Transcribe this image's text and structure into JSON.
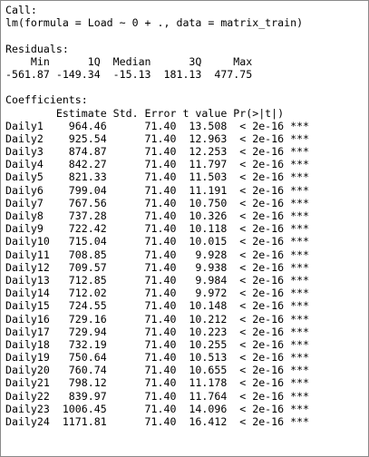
{
  "call": {
    "header": "Call:",
    "formula": "lm(formula = Load ~ 0 + ., data = matrix_train)"
  },
  "residuals": {
    "header": "Residuals:",
    "labels_line": "    Min      1Q  Median      3Q     Max ",
    "values_line": "-561.87 -149.34  -15.13  181.13  477.75 "
  },
  "coefficients": {
    "header": "Coefficients:",
    "columns_line": "        Estimate Std. Error t value Pr(>|t|)    ",
    "rows": [
      "Daily1    964.46      71.40  13.508  < 2e-16 ***",
      "Daily2    925.54      71.40  12.963  < 2e-16 ***",
      "Daily3    874.87      71.40  12.253  < 2e-16 ***",
      "Daily4    842.27      71.40  11.797  < 2e-16 ***",
      "Daily5    821.33      71.40  11.503  < 2e-16 ***",
      "Daily6    799.04      71.40  11.191  < 2e-16 ***",
      "Daily7    767.56      71.40  10.750  < 2e-16 ***",
      "Daily8    737.28      71.40  10.326  < 2e-16 ***",
      "Daily9    722.42      71.40  10.118  < 2e-16 ***",
      "Daily10   715.04      71.40  10.015  < 2e-16 ***",
      "Daily11   708.85      71.40   9.928  < 2e-16 ***",
      "Daily12   709.57      71.40   9.938  < 2e-16 ***",
      "Daily13   712.85      71.40   9.984  < 2e-16 ***",
      "Daily14   712.02      71.40   9.972  < 2e-16 ***",
      "Daily15   724.55      71.40  10.148  < 2e-16 ***",
      "Daily16   729.16      71.40  10.212  < 2e-16 ***",
      "Daily17   729.94      71.40  10.223  < 2e-16 ***",
      "Daily18   732.19      71.40  10.255  < 2e-16 ***",
      "Daily19   750.64      71.40  10.513  < 2e-16 ***",
      "Daily20   760.74      71.40  10.655  < 2e-16 ***",
      "Daily21   798.12      71.40  11.178  < 2e-16 ***",
      "Daily22   839.97      71.40  11.764  < 2e-16 ***",
      "Daily23  1006.45      71.40  14.096  < 2e-16 ***",
      "Daily24  1171.81      71.40  16.412  < 2e-16 ***"
    ]
  }
}
